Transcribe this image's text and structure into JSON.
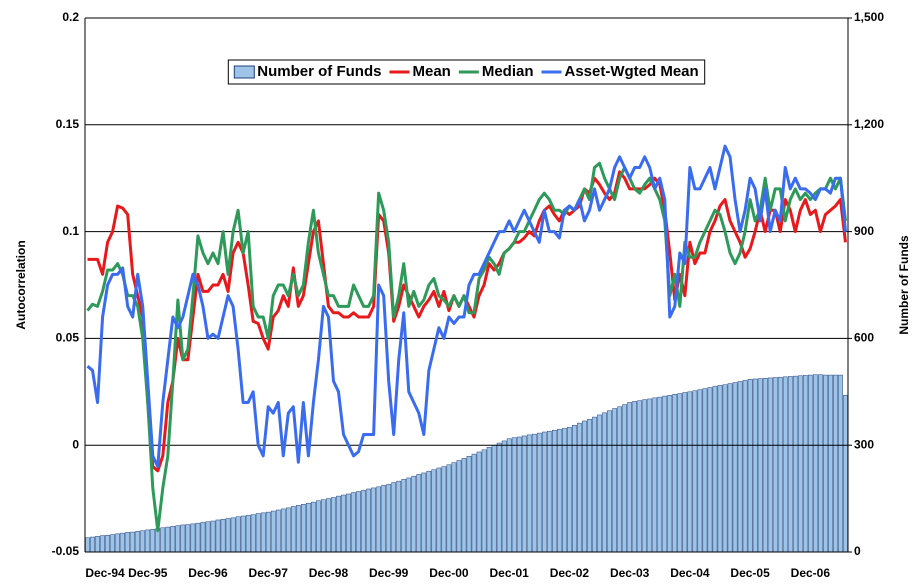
{
  "chart_data": {
    "type": "combo",
    "y_label": "Autocorrelation",
    "y2_label": "Number of Funds",
    "categories": [
      "Dec-94",
      null,
      null,
      null,
      null,
      null,
      null,
      null,
      null,
      null,
      null,
      null,
      "Dec-95",
      null,
      null,
      null,
      null,
      null,
      null,
      null,
      null,
      null,
      null,
      null,
      "Dec-96",
      null,
      null,
      null,
      null,
      null,
      null,
      null,
      null,
      null,
      null,
      null,
      "Dec-97",
      null,
      null,
      null,
      null,
      null,
      null,
      null,
      null,
      null,
      null,
      null,
      "Dec-98",
      null,
      null,
      null,
      null,
      null,
      null,
      null,
      null,
      null,
      null,
      null,
      "Dec-99",
      null,
      null,
      null,
      null,
      null,
      null,
      null,
      null,
      null,
      null,
      null,
      "Dec-00",
      null,
      null,
      null,
      null,
      null,
      null,
      null,
      null,
      null,
      null,
      null,
      "Dec-01",
      null,
      null,
      null,
      null,
      null,
      null,
      null,
      null,
      null,
      null,
      null,
      "Dec-02",
      null,
      null,
      null,
      null,
      null,
      null,
      null,
      null,
      null,
      null,
      null,
      "Dec-03",
      null,
      null,
      null,
      null,
      null,
      null,
      null,
      null,
      null,
      null,
      null,
      "Dec-04",
      null,
      null,
      null,
      null,
      null,
      null,
      null,
      null,
      null,
      null,
      null,
      "Dec-05",
      null,
      null,
      null,
      null,
      null,
      null,
      null,
      null,
      null,
      null,
      null,
      "Dec-06",
      null,
      null,
      null,
      null,
      null,
      null,
      null
    ],
    "ylim": [
      -0.05,
      0.2
    ],
    "yticks": [
      -0.05,
      0,
      0.05,
      0.1,
      0.15,
      0.2
    ],
    "y2lim": [
      0,
      1500
    ],
    "y2ticks": [
      0,
      300,
      600,
      900,
      {
        "value": 1200,
        "label": "1,200"
      },
      {
        "value": 1500,
        "label": "1,500"
      }
    ],
    "grid": true,
    "legend": "top",
    "series": [
      {
        "name": "Number of Funds",
        "type": "bar",
        "axis": "y2",
        "color": "#9dc3e6",
        "values": [
          40,
          42,
          44,
          46,
          47,
          49,
          51,
          53,
          55,
          56,
          58,
          60,
          62,
          64,
          66,
          68,
          70,
          72,
          74,
          76,
          77,
          79,
          81,
          83,
          85,
          87,
          90,
          92,
          94,
          96,
          99,
          101,
          103,
          105,
          108,
          110,
          112,
          115,
          118,
          121,
          124,
          128,
          131,
          134,
          137,
          140,
          144,
          147,
          150,
          153,
          157,
          160,
          163,
          167,
          170,
          173,
          177,
          180,
          183,
          187,
          190,
          195,
          199,
          204,
          208,
          213,
          218,
          222,
          227,
          231,
          236,
          240,
          245,
          251,
          257,
          263,
          269,
          275,
          281,
          287,
          294,
          300,
          306,
          312,
          318,
          321,
          323,
          326,
          329,
          331,
          334,
          337,
          339,
          342,
          345,
          347,
          350,
          356,
          362,
          368,
          373,
          379,
          385,
          391,
          397,
          403,
          408,
          414,
          420,
          423,
          425,
          428,
          430,
          433,
          435,
          438,
          440,
          443,
          445,
          448,
          450,
          453,
          456,
          459,
          462,
          465,
          468,
          470,
          473,
          476,
          479,
          482,
          485,
          486,
          487,
          488,
          489,
          490,
          491,
          492,
          493,
          494,
          495,
          496,
          497,
          498,
          498,
          497,
          497,
          497,
          497,
          440
        ]
      },
      {
        "name": "Mean",
        "type": "line",
        "color": "#e8191b",
        "values": [
          0.087,
          0.087,
          0.087,
          0.08,
          0.095,
          0.1,
          0.112,
          0.111,
          0.108,
          0.08,
          0.07,
          0.06,
          0.02,
          -0.01,
          -0.012,
          -0.005,
          0.02,
          0.03,
          0.05,
          0.04,
          0.04,
          0.06,
          0.08,
          0.072,
          0.072,
          0.075,
          0.075,
          0.08,
          0.072,
          0.09,
          0.095,
          0.09,
          0.075,
          0.058,
          0.057,
          0.05,
          0.045,
          0.06,
          0.063,
          0.07,
          0.065,
          0.083,
          0.065,
          0.07,
          0.085,
          0.1,
          0.105,
          0.085,
          0.065,
          0.062,
          0.062,
          0.06,
          0.06,
          0.062,
          0.06,
          0.06,
          0.06,
          0.065,
          0.108,
          0.105,
          0.09,
          0.058,
          0.065,
          0.075,
          0.07,
          0.065,
          0.06,
          0.065,
          0.068,
          0.072,
          0.065,
          0.072,
          0.063,
          0.07,
          0.065,
          0.07,
          0.065,
          0.06,
          0.07,
          0.075,
          0.085,
          0.082,
          0.085,
          0.09,
          0.092,
          0.095,
          0.095,
          0.097,
          0.1,
          0.098,
          0.105,
          0.11,
          0.112,
          0.108,
          0.105,
          0.11,
          0.108,
          0.11,
          0.112,
          0.12,
          0.118,
          0.125,
          0.122,
          0.118,
          0.115,
          0.118,
          0.128,
          0.125,
          0.12,
          0.12,
          0.12,
          0.12,
          0.122,
          0.125,
          0.122,
          0.11,
          0.09,
          0.068,
          0.08,
          0.07,
          0.095,
          0.085,
          0.09,
          0.09,
          0.1,
          0.105,
          0.112,
          0.115,
          0.105,
          0.1,
          0.095,
          0.088,
          0.092,
          0.1,
          0.11,
          0.1,
          0.11,
          0.11,
          0.1,
          0.115,
          0.11,
          0.1,
          0.11,
          0.115,
          0.108,
          0.11,
          0.1,
          0.108,
          0.11,
          0.112,
          0.115,
          0.095
        ]
      },
      {
        "name": "Median",
        "type": "line",
        "color": "#2e9a5a",
        "values": [
          0.063,
          0.066,
          0.065,
          0.072,
          0.082,
          0.082,
          0.085,
          0.08,
          0.07,
          0.07,
          0.065,
          0.05,
          0.02,
          -0.02,
          -0.04,
          -0.02,
          -0.005,
          0.03,
          0.068,
          0.04,
          0.045,
          0.07,
          0.098,
          0.09,
          0.085,
          0.09,
          0.085,
          0.1,
          0.08,
          0.1,
          0.11,
          0.09,
          0.1,
          0.065,
          0.06,
          0.06,
          0.05,
          0.07,
          0.075,
          0.075,
          0.07,
          0.08,
          0.07,
          0.075,
          0.095,
          0.11,
          0.09,
          0.08,
          0.07,
          0.07,
          0.065,
          0.065,
          0.065,
          0.075,
          0.07,
          0.065,
          0.065,
          0.07,
          0.118,
          0.11,
          0.095,
          0.06,
          0.07,
          0.085,
          0.065,
          0.072,
          0.065,
          0.068,
          0.075,
          0.078,
          0.07,
          0.068,
          0.065,
          0.07,
          0.065,
          0.07,
          0.062,
          0.062,
          0.078,
          0.082,
          0.088,
          0.085,
          0.08,
          0.09,
          0.092,
          0.095,
          0.1,
          0.1,
          0.105,
          0.11,
          0.115,
          0.118,
          0.115,
          0.11,
          0.11,
          0.108,
          0.112,
          0.11,
          0.115,
          0.12,
          0.115,
          0.13,
          0.132,
          0.125,
          0.12,
          0.115,
          0.125,
          0.13,
          0.125,
          0.12,
          0.118,
          0.122,
          0.125,
          0.12,
          0.115,
          0.105,
          0.07,
          0.08,
          0.065,
          0.095,
          0.088,
          0.088,
          0.095,
          0.1,
          0.105,
          0.11,
          0.108,
          0.1,
          0.09,
          0.085,
          0.09,
          0.1,
          0.115,
          0.105,
          0.11,
          0.125,
          0.11,
          0.12,
          0.12,
          0.105,
          0.115,
          0.12,
          0.115,
          0.118,
          0.115,
          0.118,
          0.12,
          0.12,
          0.125,
          0.12,
          0.125,
          0.105
        ]
      },
      {
        "name": "Asset-Wgted Mean",
        "type": "line",
        "color": "#3a6cf0",
        "values": [
          0.037,
          0.035,
          0.02,
          0.06,
          0.075,
          0.08,
          0.08,
          0.083,
          0.065,
          0.06,
          0.08,
          0.065,
          0.03,
          -0.005,
          -0.01,
          0.02,
          0.04,
          0.06,
          0.055,
          0.06,
          0.07,
          0.08,
          0.075,
          0.065,
          0.05,
          0.052,
          0.05,
          0.06,
          0.07,
          0.065,
          0.045,
          0.02,
          0.02,
          0.025,
          0.0,
          -0.005,
          0.018,
          0.015,
          0.02,
          -0.005,
          0.015,
          0.018,
          -0.008,
          0.02,
          -0.005,
          0.02,
          0.04,
          0.065,
          0.06,
          0.03,
          0.025,
          0.005,
          0.0,
          -0.005,
          -0.003,
          0.005,
          0.005,
          0.005,
          0.075,
          0.07,
          0.03,
          0.005,
          0.04,
          0.062,
          0.025,
          0.02,
          0.015,
          0.005,
          0.035,
          0.045,
          0.055,
          0.05,
          0.06,
          0.057,
          0.06,
          0.06,
          0.075,
          0.08,
          0.08,
          0.085,
          0.09,
          0.095,
          0.1,
          0.1,
          0.105,
          0.1,
          0.105,
          0.11,
          0.105,
          0.1,
          0.095,
          0.11,
          0.1,
          0.1,
          0.097,
          0.11,
          0.112,
          0.11,
          0.115,
          0.105,
          0.11,
          0.12,
          0.11,
          0.115,
          0.12,
          0.13,
          0.135,
          0.13,
          0.125,
          0.13,
          0.13,
          0.135,
          0.13,
          0.12,
          0.125,
          0.115,
          0.06,
          0.065,
          0.09,
          0.085,
          0.13,
          0.12,
          0.12,
          0.125,
          0.13,
          0.12,
          0.13,
          0.14,
          0.135,
          0.115,
          0.1,
          0.11,
          0.125,
          0.12,
          0.105,
          0.12,
          0.1,
          0.11,
          0.105,
          0.13,
          0.12,
          0.125,
          0.12,
          0.12,
          0.118,
          0.115,
          0.12,
          0.12,
          0.118,
          0.125,
          0.125,
          0.1
        ]
      }
    ]
  }
}
